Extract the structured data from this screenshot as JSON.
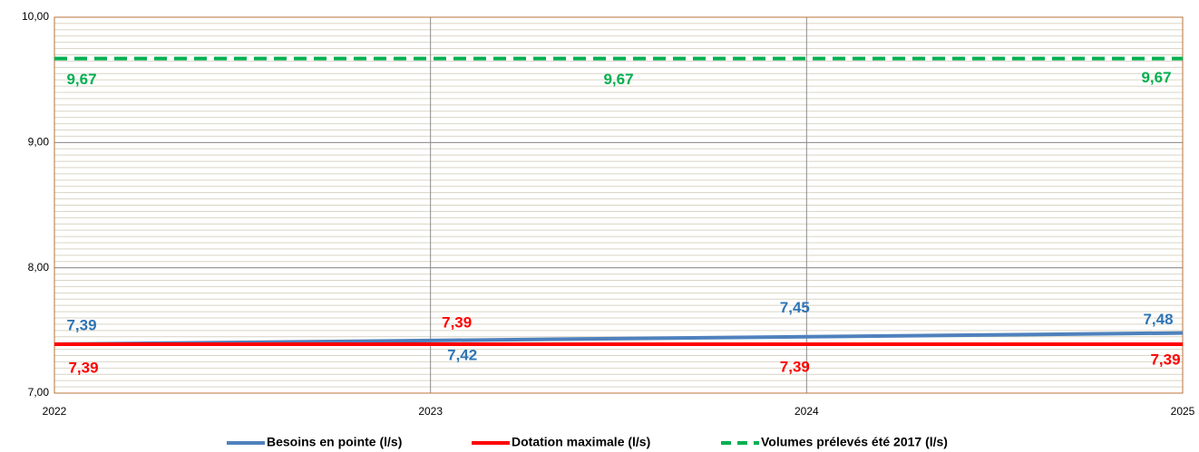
{
  "chart_data": {
    "type": "line",
    "x": [
      2022,
      2023,
      2024,
      2025
    ],
    "xlim": [
      2022,
      2025
    ],
    "xticks": [
      2022,
      2023,
      2024,
      2025
    ],
    "ylim": [
      7,
      10
    ],
    "yticks": [
      {
        "value": 7,
        "label": "7,00"
      },
      {
        "value": 8,
        "label": "8,00"
      },
      {
        "value": 9,
        "label": "9,00"
      },
      {
        "value": 10,
        "label": "10,00"
      }
    ],
    "minor_grid_step": 0.05,
    "grid": true,
    "legend": "bottom",
    "series": [
      {
        "name": "Besoins en pointe (l/s)",
        "color": "#4f81bd",
        "label_color": "#2e75b6",
        "values": [
          7.39,
          7.42,
          7.45,
          7.48
        ],
        "value_labels": [
          "7,39",
          "7,42",
          "7,45",
          "7,48"
        ]
      },
      {
        "name": "Dotation maximale (l/s)",
        "color": "#ff0000",
        "label_color": "#ff0000",
        "values": [
          7.39,
          7.39,
          7.39,
          7.39
        ],
        "value_labels": [
          "7,39",
          "7,39",
          "7,39",
          "7,39"
        ]
      },
      {
        "name": "Volumes prélevés été 2017 (l/s)",
        "color": "#00b050",
        "label_color": "#00b050",
        "dashed": true,
        "x": [
          2022,
          2023.5,
          2025
        ],
        "values": [
          9.67,
          9.67,
          9.67
        ],
        "value_labels": [
          "9,67",
          "9,67",
          "9,67"
        ]
      }
    ]
  }
}
